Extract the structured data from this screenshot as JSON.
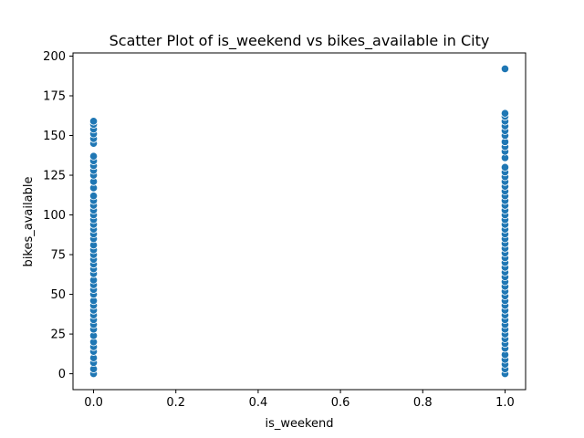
{
  "chart_data": {
    "type": "scatter",
    "title": "Scatter Plot of is_weekend vs bikes_available in City",
    "xlabel": "is_weekend",
    "ylabel": "bikes_available",
    "xlim": [
      -0.05,
      1.05
    ],
    "ylim": [
      -10,
      202
    ],
    "xticks": [
      0.0,
      0.2,
      0.4,
      0.6,
      0.8,
      1.0
    ],
    "xtick_labels": [
      "0.0",
      "0.2",
      "0.4",
      "0.6",
      "0.8",
      "1.0"
    ],
    "yticks": [
      0,
      25,
      50,
      75,
      100,
      125,
      150,
      175,
      200
    ],
    "ytick_labels": [
      "0",
      "25",
      "50",
      "75",
      "100",
      "125",
      "150",
      "175",
      "200"
    ],
    "grid": false,
    "marker_color": "#1f77b4",
    "points": [
      {
        "x": 0,
        "y": 0
      },
      {
        "x": 0,
        "y": 3
      },
      {
        "x": 0,
        "y": 7
      },
      {
        "x": 0,
        "y": 10
      },
      {
        "x": 0,
        "y": 14
      },
      {
        "x": 0,
        "y": 17
      },
      {
        "x": 0,
        "y": 20
      },
      {
        "x": 0,
        "y": 24
      },
      {
        "x": 0,
        "y": 28
      },
      {
        "x": 0,
        "y": 31
      },
      {
        "x": 0,
        "y": 34
      },
      {
        "x": 0,
        "y": 37
      },
      {
        "x": 0,
        "y": 40
      },
      {
        "x": 0,
        "y": 43
      },
      {
        "x": 0,
        "y": 46
      },
      {
        "x": 0,
        "y": 50
      },
      {
        "x": 0,
        "y": 53
      },
      {
        "x": 0,
        "y": 56
      },
      {
        "x": 0,
        "y": 59
      },
      {
        "x": 0,
        "y": 63
      },
      {
        "x": 0,
        "y": 66
      },
      {
        "x": 0,
        "y": 69
      },
      {
        "x": 0,
        "y": 72
      },
      {
        "x": 0,
        "y": 75
      },
      {
        "x": 0,
        "y": 78
      },
      {
        "x": 0,
        "y": 81
      },
      {
        "x": 0,
        "y": 85
      },
      {
        "x": 0,
        "y": 88
      },
      {
        "x": 0,
        "y": 91
      },
      {
        "x": 0,
        "y": 94
      },
      {
        "x": 0,
        "y": 97
      },
      {
        "x": 0,
        "y": 100
      },
      {
        "x": 0,
        "y": 103
      },
      {
        "x": 0,
        "y": 106
      },
      {
        "x": 0,
        "y": 109
      },
      {
        "x": 0,
        "y": 112
      },
      {
        "x": 0,
        "y": 117
      },
      {
        "x": 0,
        "y": 121
      },
      {
        "x": 0,
        "y": 125
      },
      {
        "x": 0,
        "y": 128
      },
      {
        "x": 0,
        "y": 131
      },
      {
        "x": 0,
        "y": 134
      },
      {
        "x": 0,
        "y": 137
      },
      {
        "x": 0,
        "y": 145
      },
      {
        "x": 0,
        "y": 148
      },
      {
        "x": 0,
        "y": 151
      },
      {
        "x": 0,
        "y": 154
      },
      {
        "x": 0,
        "y": 157
      },
      {
        "x": 0,
        "y": 159
      },
      {
        "x": 1,
        "y": 0
      },
      {
        "x": 1,
        "y": 3
      },
      {
        "x": 1,
        "y": 6
      },
      {
        "x": 1,
        "y": 9
      },
      {
        "x": 1,
        "y": 12
      },
      {
        "x": 1,
        "y": 16
      },
      {
        "x": 1,
        "y": 19
      },
      {
        "x": 1,
        "y": 22
      },
      {
        "x": 1,
        "y": 25
      },
      {
        "x": 1,
        "y": 28
      },
      {
        "x": 1,
        "y": 31
      },
      {
        "x": 1,
        "y": 34
      },
      {
        "x": 1,
        "y": 37
      },
      {
        "x": 1,
        "y": 40
      },
      {
        "x": 1,
        "y": 43
      },
      {
        "x": 1,
        "y": 46
      },
      {
        "x": 1,
        "y": 49
      },
      {
        "x": 1,
        "y": 52
      },
      {
        "x": 1,
        "y": 55
      },
      {
        "x": 1,
        "y": 58
      },
      {
        "x": 1,
        "y": 61
      },
      {
        "x": 1,
        "y": 64
      },
      {
        "x": 1,
        "y": 67
      },
      {
        "x": 1,
        "y": 70
      },
      {
        "x": 1,
        "y": 73
      },
      {
        "x": 1,
        "y": 76
      },
      {
        "x": 1,
        "y": 79
      },
      {
        "x": 1,
        "y": 82
      },
      {
        "x": 1,
        "y": 85
      },
      {
        "x": 1,
        "y": 88
      },
      {
        "x": 1,
        "y": 91
      },
      {
        "x": 1,
        "y": 94
      },
      {
        "x": 1,
        "y": 97
      },
      {
        "x": 1,
        "y": 100
      },
      {
        "x": 1,
        "y": 103
      },
      {
        "x": 1,
        "y": 106
      },
      {
        "x": 1,
        "y": 109
      },
      {
        "x": 1,
        "y": 112
      },
      {
        "x": 1,
        "y": 115
      },
      {
        "x": 1,
        "y": 118
      },
      {
        "x": 1,
        "y": 121
      },
      {
        "x": 1,
        "y": 124
      },
      {
        "x": 1,
        "y": 127
      },
      {
        "x": 1,
        "y": 130
      },
      {
        "x": 1,
        "y": 136
      },
      {
        "x": 1,
        "y": 140
      },
      {
        "x": 1,
        "y": 143
      },
      {
        "x": 1,
        "y": 146
      },
      {
        "x": 1,
        "y": 150
      },
      {
        "x": 1,
        "y": 153
      },
      {
        "x": 1,
        "y": 156
      },
      {
        "x": 1,
        "y": 159
      },
      {
        "x": 1,
        "y": 162
      },
      {
        "x": 1,
        "y": 164
      },
      {
        "x": 1,
        "y": 192
      }
    ]
  }
}
